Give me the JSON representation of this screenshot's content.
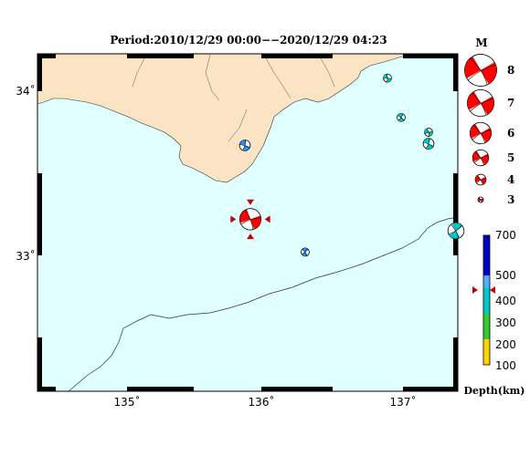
{
  "title": "Period:2010/12/29 00:00−−2020/12/29 04:23",
  "axes": {
    "x_ticks": [
      "135˚",
      "136˚",
      "137˚"
    ],
    "y_ticks": [
      "34˚",
      "33˚"
    ]
  },
  "colors": {
    "sea": "#e0ffff",
    "land": "#fbe4c4",
    "focal_red": "#ff0000",
    "depth_shallow": "#00c8c8",
    "depth_mid": "#1e90ff",
    "marker": "#c80000"
  },
  "events": [
    {
      "id": "main-event",
      "lon": 135.9,
      "lat": 33.22,
      "mag": 6,
      "depth_color": "#ff0000",
      "highlight": true
    },
    {
      "id": "event-1",
      "lon": 135.86,
      "lat": 33.67,
      "mag": 4,
      "depth_color": "#1e90ff"
    },
    {
      "id": "event-2",
      "lon": 136.3,
      "lat": 33.02,
      "mag": 3.5,
      "depth_color": "#1e90ff"
    },
    {
      "id": "event-3",
      "lon": 136.9,
      "lat": 34.08,
      "mag": 3.5,
      "depth_color": "#00c8c8"
    },
    {
      "id": "event-4",
      "lon": 137.0,
      "lat": 33.84,
      "mag": 3.5,
      "depth_color": "#00c8c8"
    },
    {
      "id": "event-5",
      "lon": 137.2,
      "lat": 33.75,
      "mag": 3.5,
      "depth_color": "#00c8c8"
    },
    {
      "id": "event-6",
      "lon": 137.2,
      "lat": 33.68,
      "mag": 4,
      "depth_color": "#00c8c8"
    },
    {
      "id": "event-7",
      "lon": 137.4,
      "lat": 33.15,
      "mag": 5,
      "depth_color": "#00c8c8"
    }
  ],
  "magnitude_legend": {
    "title": "M",
    "items": [
      {
        "label": "8",
        "mag": 8
      },
      {
        "label": "7",
        "mag": 7
      },
      {
        "label": "6",
        "mag": 6
      },
      {
        "label": "5",
        "mag": 5
      },
      {
        "label": "4",
        "mag": 4
      },
      {
        "label": "3",
        "mag": 3
      }
    ]
  },
  "depth_scale": {
    "title": "Depth(km)",
    "ticks": [
      "700",
      "500",
      "400",
      "300",
      "200",
      "100"
    ],
    "marker_depth": 450
  }
}
